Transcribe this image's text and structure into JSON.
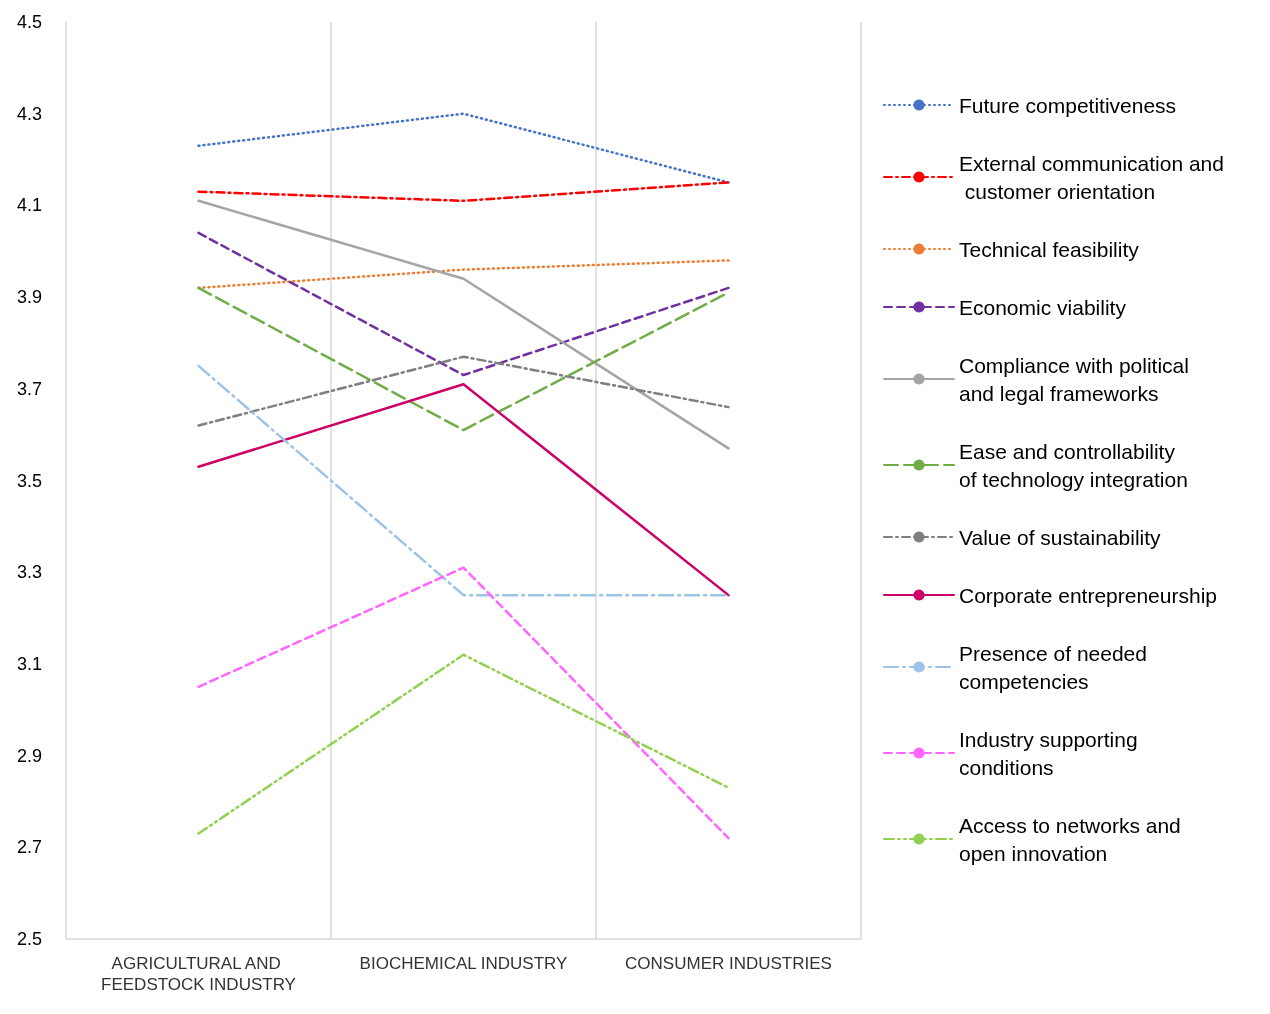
{
  "chart_data": {
    "type": "line",
    "categories": [
      "AGRICULTURAL AND FEEDSTOCK INDUSTRY",
      "BIOCHEMICAL INDUSTRY",
      "CONSUMER INDUSTRIES"
    ],
    "series": [
      {
        "name": "Future competitiveness",
        "color": "#4472c4",
        "line_style": "dotted",
        "values": [
          4.23,
          4.3,
          4.15
        ]
      },
      {
        "name": "External communication and customer orientation",
        "color": "#ff0000",
        "line_style": "dashdot",
        "values": [
          4.13,
          4.11,
          4.15
        ]
      },
      {
        "name": "Technical feasibility",
        "color": "#ed7d31",
        "line_style": "dotted",
        "values": [
          3.92,
          3.96,
          3.98
        ]
      },
      {
        "name": "Economic viability",
        "color": "#7030a0",
        "line_style": "dashed",
        "values": [
          4.04,
          3.73,
          3.92
        ]
      },
      {
        "name": "Compliance with political and legal frameworks",
        "color": "#a5a5a5",
        "line_style": "solid",
        "values": [
          4.11,
          3.94,
          3.57
        ]
      },
      {
        "name": "Ease and controllability of technology integration",
        "color": "#70ad47",
        "line_style": "longdash",
        "values": [
          3.92,
          3.61,
          3.91
        ]
      },
      {
        "name": "Value of sustainability",
        "color": "#7f7f7f",
        "line_style": "dashdot",
        "values": [
          3.62,
          3.77,
          3.66
        ]
      },
      {
        "name": "Corporate entrepreneurship",
        "color": "#cc0066",
        "line_style": "solid",
        "values": [
          3.53,
          3.71,
          3.25
        ]
      },
      {
        "name": "Presence of needed competencies",
        "color": "#9dc3e6",
        "line_style": "longdashdot",
        "values": [
          3.75,
          3.25,
          3.25
        ]
      },
      {
        "name": "Industry supporting conditions",
        "color": "#ff66ff",
        "line_style": "dashed",
        "values": [
          3.05,
          3.31,
          2.72
        ]
      },
      {
        "name": "Access to networks and open innovation",
        "color": "#92d050",
        "line_style": "dashdotdot",
        "values": [
          2.73,
          3.12,
          2.83
        ]
      }
    ],
    "ylim": [
      2.5,
      4.5
    ],
    "yticks": [
      2.5,
      2.7,
      2.9,
      3.1,
      3.3,
      3.5,
      3.7,
      3.9,
      4.1,
      4.3,
      4.5
    ],
    "grid": "x",
    "legend": "right",
    "marker": "none"
  }
}
